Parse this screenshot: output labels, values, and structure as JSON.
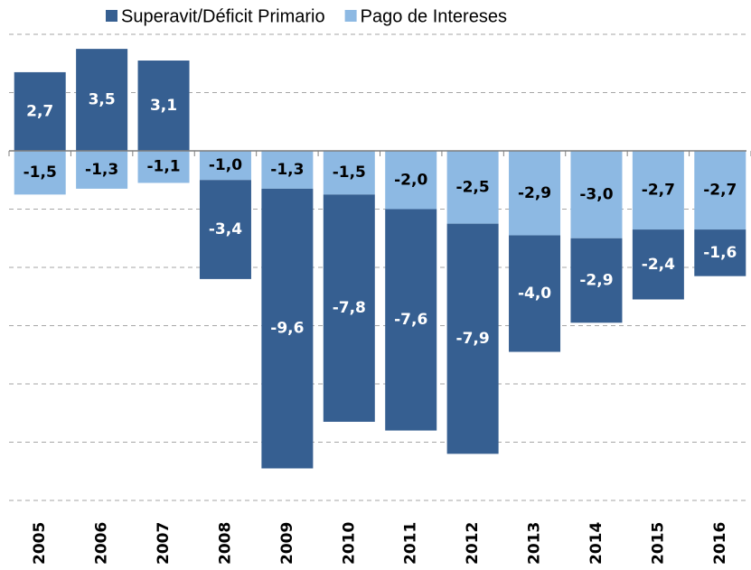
{
  "chart_data": {
    "type": "stacked_bar",
    "categories": [
      "2005",
      "2006",
      "2007",
      "2008",
      "2009",
      "2010",
      "2011",
      "2012",
      "2013",
      "2014",
      "2015",
      "2016"
    ],
    "series": [
      {
        "name": "Superavit/Déficit Primario",
        "color": "#365f91",
        "values": [
          2.7,
          3.5,
          3.1,
          -3.4,
          -9.6,
          -7.8,
          -7.6,
          -7.9,
          -4.0,
          -2.9,
          -2.4,
          -1.6
        ],
        "value_labels": [
          "2,7",
          "3,5",
          "3,1",
          "-3,4",
          "-9,6",
          "-7,8",
          "-7,6",
          "-7,9",
          "-4,0",
          "-2,9",
          "-2,4",
          "-1,6"
        ]
      },
      {
        "name": "Pago de Intereses",
        "color": "#8db9e3",
        "values": [
          -1.5,
          -1.3,
          -1.1,
          -1.0,
          -1.3,
          -1.5,
          -2.0,
          -2.5,
          -2.9,
          -3.0,
          -2.7,
          -2.7
        ],
        "value_labels": [
          "-1,5",
          "-1,3",
          "-1,1",
          "-1,0",
          "-1,3",
          "-1,5",
          "-2,0",
          "-2,5",
          "-2,9",
          "-3,0",
          "-2,7",
          "-2,7"
        ]
      }
    ],
    "ylim": [
      -12,
      4
    ],
    "yticks": [
      -12,
      -10,
      -8,
      -6,
      -4,
      -2,
      0,
      2,
      4
    ],
    "grid": true,
    "ytick_labels": false,
    "legend": "top"
  }
}
